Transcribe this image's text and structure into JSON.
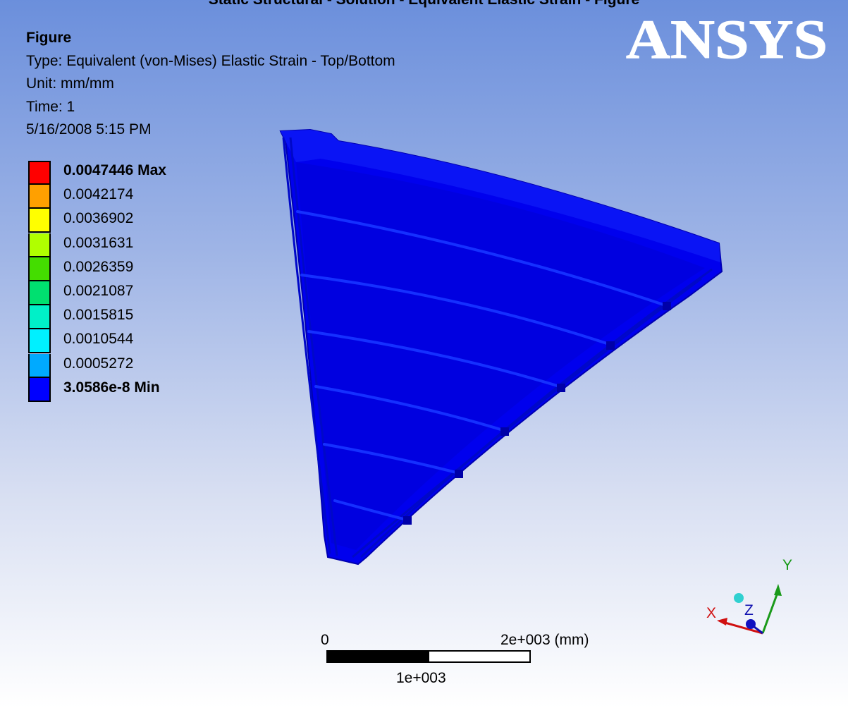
{
  "top_caption": "Static Structural - Solution - Equivalent Elastic Strain - Figure",
  "info": {
    "title": "Figure",
    "type": "Type: Equivalent (von-Mises) Elastic Strain - Top/Bottom",
    "unit": "Unit: mm/mm",
    "time": "Time: 1",
    "date": "5/16/2008 5:15 PM"
  },
  "logo": {
    "text": "ANSYS",
    "color": "#ffffff"
  },
  "legend": {
    "entries": [
      {
        "label": "0.0047446 Max",
        "color": "#ff0000",
        "bold": true
      },
      {
        "label": "0.0042174",
        "color": "#ffa000"
      },
      {
        "label": "0.0036902",
        "color": "#ffff00"
      },
      {
        "label": "0.0031631",
        "color": "#b0ff00"
      },
      {
        "label": "0.0026359",
        "color": "#44dd00"
      },
      {
        "label": "0.0021087",
        "color": "#00e070"
      },
      {
        "label": "0.0015815",
        "color": "#00f0c8"
      },
      {
        "label": "0.0010544",
        "color": "#00f0ff"
      },
      {
        "label": "0.0005272",
        "color": "#00aaff"
      },
      {
        "label": "3.0586e-8 Min",
        "color": "#0000ff",
        "bold": true
      }
    ]
  },
  "scale": {
    "start": "0",
    "end": "2e+003 (mm)",
    "mid": "1e+003"
  },
  "triad": {
    "x": "X",
    "y": "Y",
    "z": "Z"
  },
  "colors": {
    "model_fill": "#0000ee",
    "model_edge": "#0000b8",
    "stiffener": "#1530ff"
  }
}
